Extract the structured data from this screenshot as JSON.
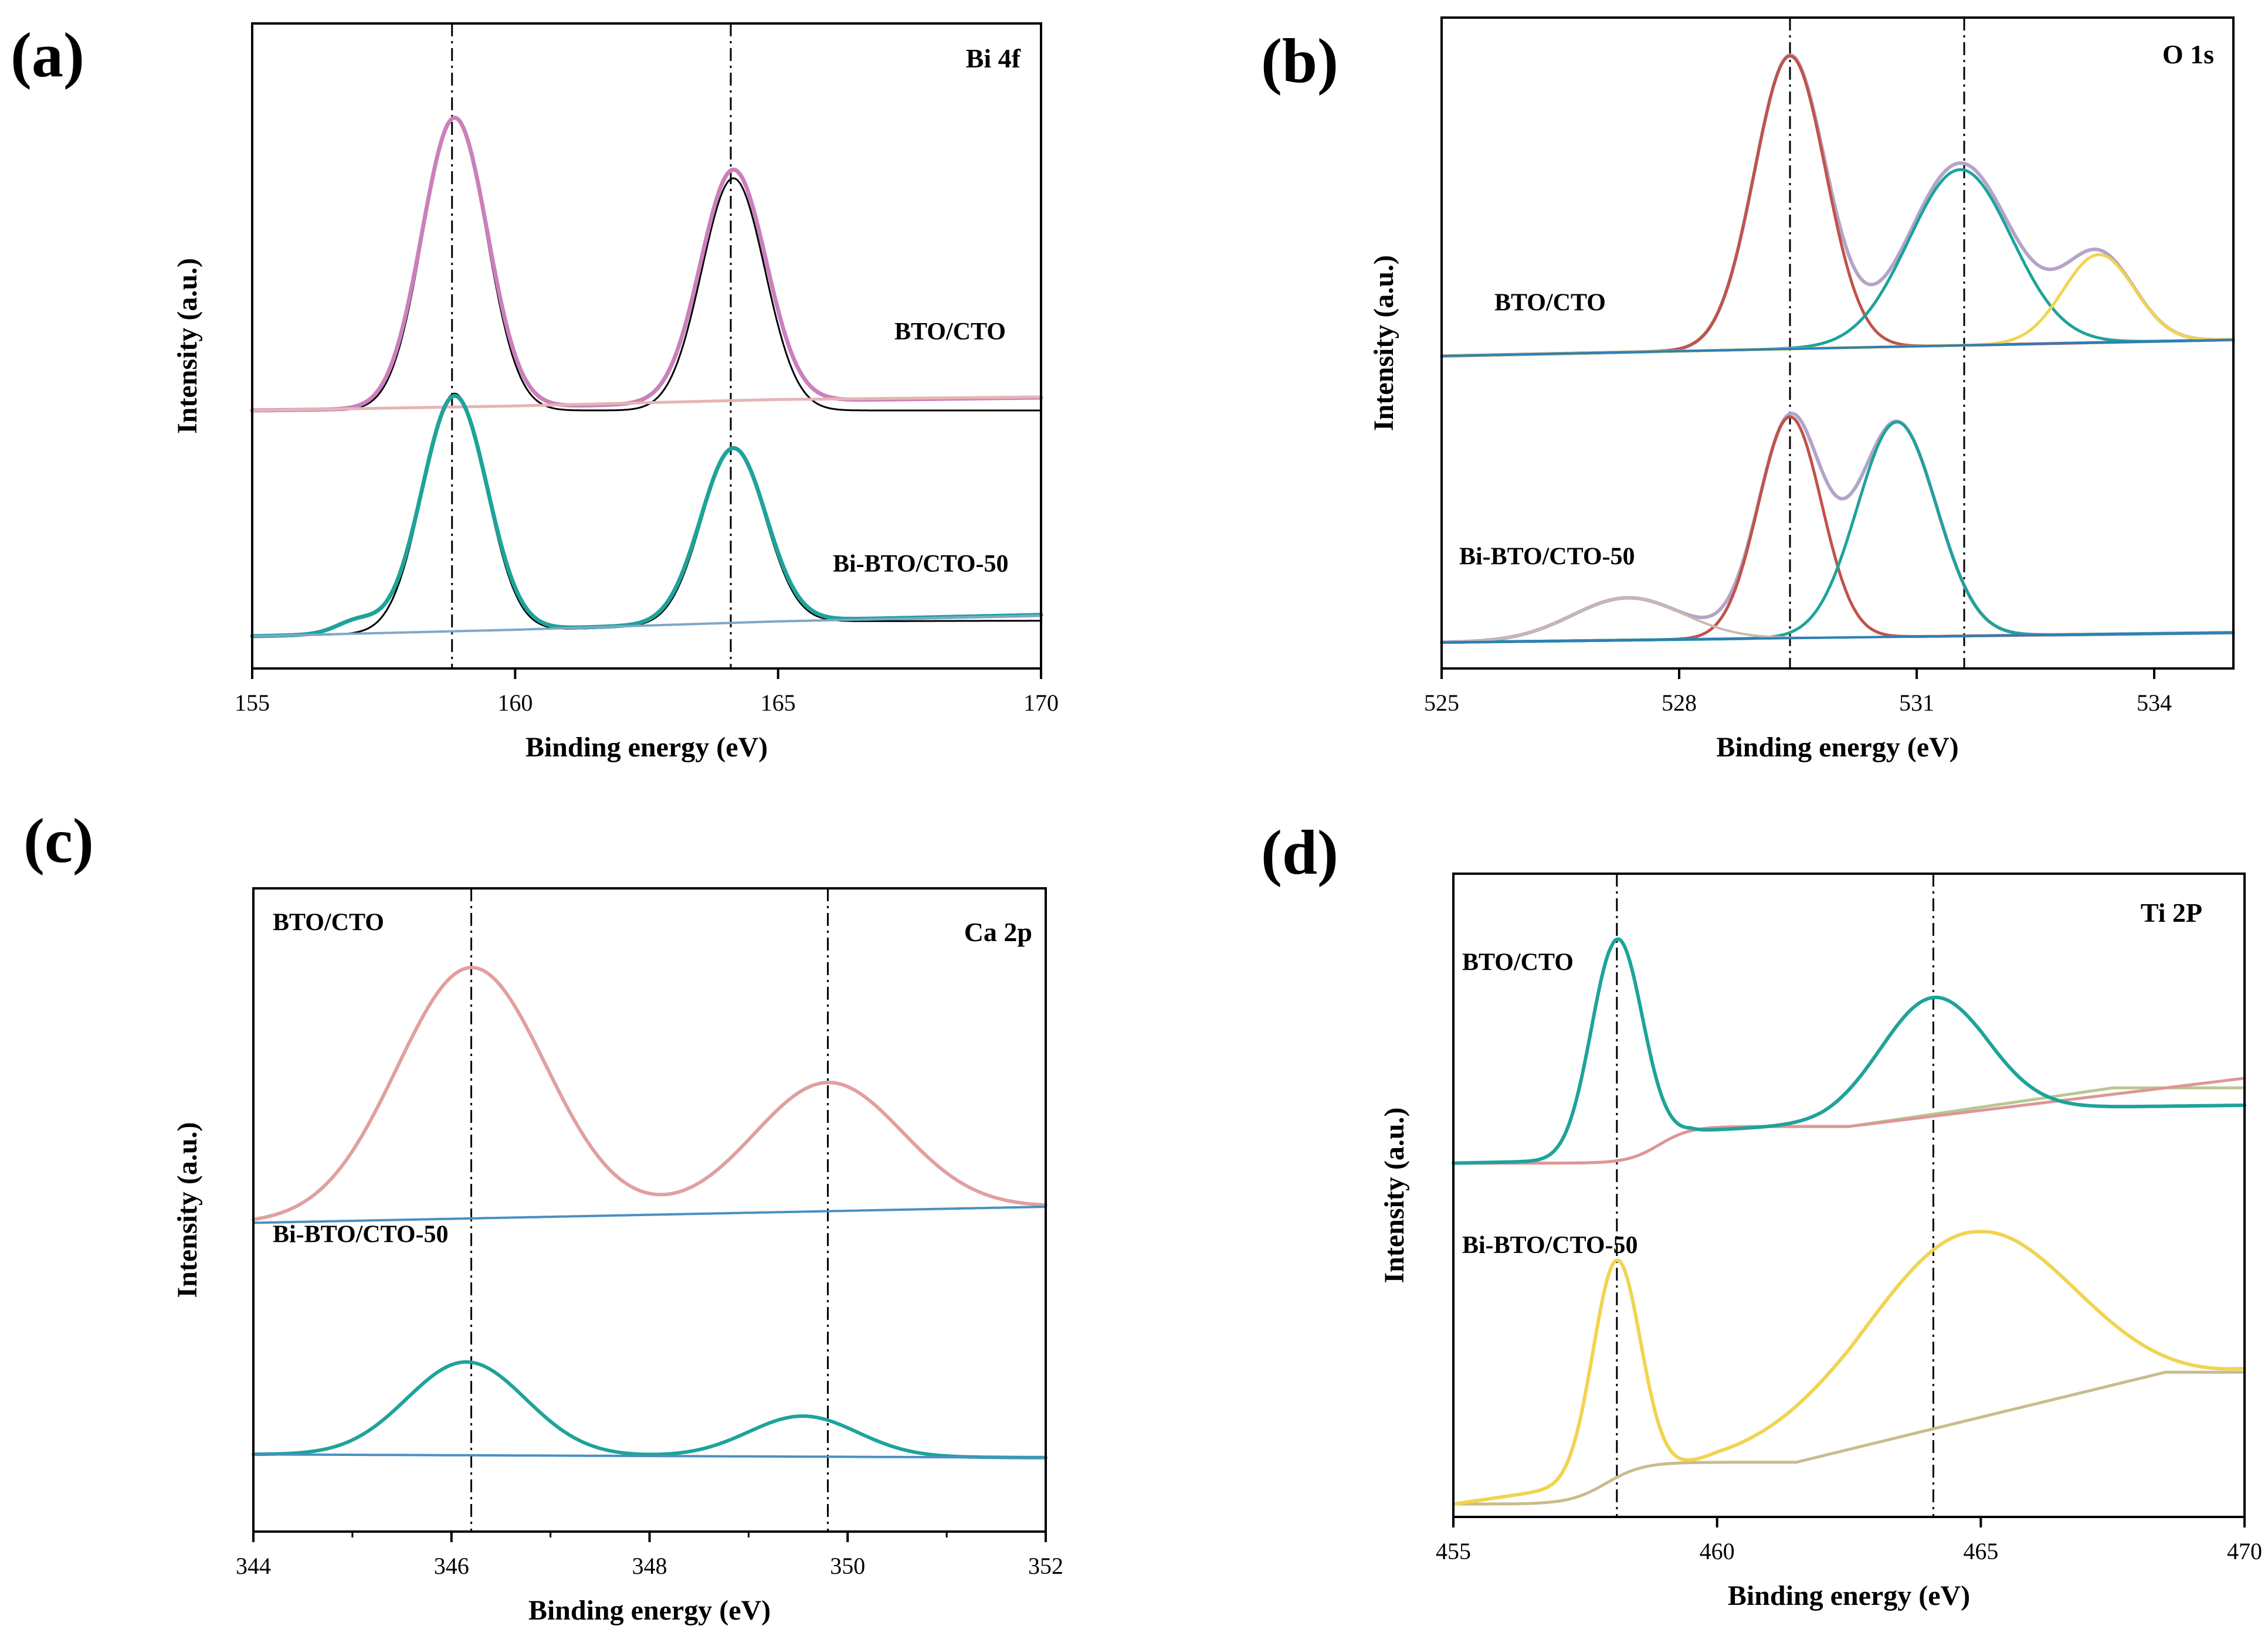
{
  "figure": {
    "panels": [
      "(a)",
      "(b)",
      "(c)",
      "(d)"
    ]
  },
  "chart_data": [
    {
      "id": "a",
      "type": "line",
      "panel_label": "(a)",
      "title": "Bi 4f",
      "xlabel": "Binding energy (eV)",
      "ylabel": "Intensity (a.u.)",
      "xlim": [
        155,
        170
      ],
      "ylim": [
        0,
        100
      ],
      "xticks": [
        155,
        160,
        165,
        170
      ],
      "xtick_labels": [
        "155",
        "160",
        "165",
        "170"
      ],
      "reference_lines": [
        158.8,
        164.1
      ],
      "sample_labels": [
        {
          "text": "BTO/CTO",
          "x": 163.8,
          "y": 51
        },
        {
          "text": "Bi-BTO/CTO-50",
          "x": 163.3,
          "y": 15
        }
      ],
      "series": [
        {
          "name": "BTO/CTO raw",
          "color": "#000000",
          "width": 3,
          "offset": 40,
          "baseline": [
            [
              155,
              0
            ],
            [
              170,
              0
            ]
          ],
          "peaks": [
            {
              "c": 158.85,
              "h": 45.5,
              "w": 0.6
            },
            {
              "c": 164.15,
              "h": 36,
              "w": 0.6
            }
          ]
        },
        {
          "name": "BTO/CTO fit",
          "color": "#cc7fbd",
          "width": 7,
          "offset": 40,
          "baseline": [
            [
              155,
              0
            ],
            [
              160,
              0.5
            ],
            [
              165,
              1.5
            ],
            [
              170,
              2
            ]
          ],
          "peaks": [
            {
              "c": 158.85,
              "h": 45,
              "w": 0.62
            },
            {
              "c": 164.15,
              "h": 36,
              "w": 0.62
            }
          ]
        },
        {
          "name": "BTO/CTO background",
          "color": "#e5b5b5",
          "width": 5,
          "offset": 40,
          "baseline": [
            [
              155,
              0
            ],
            [
              160,
              0.7
            ],
            [
              165,
              1.7
            ],
            [
              170,
              2.1
            ]
          ],
          "peaks": []
        },
        {
          "name": "Bi-BTO/CTO-50 raw",
          "color": "#000000",
          "width": 3,
          "offset": 5,
          "baseline": [
            [
              155,
              0
            ],
            [
              160,
              0.8
            ],
            [
              165,
              2.3
            ],
            [
              170,
              2.4
            ]
          ],
          "peaks": [
            {
              "c": 158.85,
              "h": 37,
              "w": 0.6
            },
            {
              "c": 164.15,
              "h": 27,
              "w": 0.6
            }
          ]
        },
        {
          "name": "Bi-BTO/CTO-50 fit",
          "color": "#1ea39a",
          "width": 7,
          "offset": 5,
          "baseline": [
            [
              155,
              0
            ],
            [
              160,
              1
            ],
            [
              165,
              2.4
            ],
            [
              170,
              3.3
            ]
          ],
          "peaks": [
            {
              "c": 158.85,
              "h": 36.5,
              "w": 0.62
            },
            {
              "c": 164.15,
              "h": 27,
              "w": 0.62
            },
            {
              "c": 157,
              "h": 2,
              "w": 0.4
            }
          ]
        },
        {
          "name": "Bi-BTO/CTO-50 background",
          "color": "#7fa7c9",
          "width": 4,
          "offset": 5,
          "baseline": [
            [
              155,
              0
            ],
            [
              160,
              1
            ],
            [
              165,
              2.3
            ],
            [
              170,
              3.2
            ]
          ],
          "peaks": []
        }
      ]
    },
    {
      "id": "b",
      "type": "line",
      "panel_label": "(b)",
      "title": "O 1s",
      "xlabel": "Binding energy (eV)",
      "ylabel": "Intensity (a.u.)",
      "xlim": [
        525,
        535
      ],
      "ylim": [
        0,
        100
      ],
      "xticks": [
        525,
        528,
        531,
        534
      ],
      "xtick_labels": [
        "525",
        "528",
        "531",
        "534"
      ],
      "reference_lines": [
        529.4,
        531.6
      ],
      "sample_labels": [
        {
          "text": "BTO/CTO",
          "x": 526.4,
          "y": 55
        },
        {
          "text": "Bi-BTO/CTO-50",
          "x": 526.4,
          "y": 16
        }
      ],
      "series": [
        {
          "name": "BTO/CTO raw",
          "color": "#b3a4c8",
          "width": 6,
          "offset": 48,
          "baseline": [
            [
              525,
              0
            ],
            [
              535,
              2.5
            ]
          ],
          "peaks": [
            {
              "c": 529.4,
              "h": 45,
              "w": 0.45
            },
            {
              "c": 531.55,
              "h": 28,
              "w": 0.65
            },
            {
              "c": 533.3,
              "h": 13.5,
              "w": 0.45
            }
          ]
        },
        {
          "name": "BTO/CTO component 1",
          "color": "#c0534a",
          "width": 5,
          "offset": 48,
          "baseline": [
            [
              525,
              0
            ],
            [
              535,
              2.5
            ]
          ],
          "peaks": [
            {
              "c": 529.4,
              "h": 45,
              "w": 0.45
            }
          ]
        },
        {
          "name": "BTO/CTO component 2",
          "color": "#1ea39a",
          "width": 5,
          "offset": 48,
          "baseline": [
            [
              525,
              0
            ],
            [
              535,
              2.5
            ]
          ],
          "peaks": [
            {
              "c": 531.55,
              "h": 27,
              "w": 0.65
            }
          ]
        },
        {
          "name": "BTO/CTO component 3",
          "color": "#f0d452",
          "width": 5,
          "offset": 48,
          "baseline": [
            [
              525,
              0
            ],
            [
              535,
              2.5
            ]
          ],
          "peaks": [
            {
              "c": 533.3,
              "h": 13.5,
              "w": 0.45
            }
          ]
        },
        {
          "name": "BTO/CTO background",
          "color": "#2b7fb8",
          "width": 4,
          "offset": 48,
          "baseline": [
            [
              525,
              0
            ],
            [
              535,
              2.5
            ]
          ],
          "peaks": []
        },
        {
          "name": "Bi-BTO/CTO-50 raw",
          "color": "#b3a4c8",
          "width": 6,
          "offset": 4,
          "baseline": [
            [
              525,
              0
            ],
            [
              535,
              1.5
            ]
          ],
          "peaks": [
            {
              "c": 529.4,
              "h": 33.5,
              "w": 0.4
            },
            {
              "c": 530.75,
              "h": 33,
              "w": 0.5
            },
            {
              "c": 527.35,
              "h": 6.5,
              "w": 0.7
            }
          ]
        },
        {
          "name": "Bi-BTO/CTO-50 component 1",
          "color": "#c0534a",
          "width": 5,
          "offset": 4,
          "baseline": [
            [
              525,
              0
            ],
            [
              535,
              1.5
            ]
          ],
          "peaks": [
            {
              "c": 529.4,
              "h": 34,
              "w": 0.4
            }
          ]
        },
        {
          "name": "Bi-BTO/CTO-50 component 2",
          "color": "#1ea39a",
          "width": 5,
          "offset": 4,
          "baseline": [
            [
              525,
              0
            ],
            [
              535,
              1.5
            ]
          ],
          "peaks": [
            {
              "c": 530.75,
              "h": 33,
              "w": 0.5
            }
          ]
        },
        {
          "name": "Bi-BTO/CTO-50 component 3",
          "color": "#c8b8b0",
          "width": 4,
          "offset": 4,
          "baseline": [
            [
              525,
              0
            ],
            [
              535,
              1.5
            ]
          ],
          "peaks": [
            {
              "c": 527.35,
              "h": 6.5,
              "w": 0.7
            }
          ]
        },
        {
          "name": "Bi-BTO/CTO-50 background",
          "color": "#2b7fb8",
          "width": 4,
          "offset": 4,
          "baseline": [
            [
              525,
              0
            ],
            [
              535,
              1.5
            ]
          ],
          "peaks": []
        }
      ]
    },
    {
      "id": "c",
      "type": "line",
      "panel_label": "(c)",
      "title": "Ca 2p",
      "xlabel": "Binding energy (eV)",
      "ylabel": "Intensity (a.u.)",
      "xlim": [
        344,
        352
      ],
      "ylim": [
        0,
        100
      ],
      "xticks": [
        344,
        346,
        348,
        350,
        352
      ],
      "xtick_labels": [
        "344",
        "346",
        "348",
        "350",
        "352"
      ],
      "minor_xticks": [
        345,
        347,
        349,
        351
      ],
      "reference_lines": [
        346.2,
        349.8
      ],
      "sample_labels": [
        {
          "text": "BTO/CTO",
          "x": 344.2,
          "y": 93.5
        },
        {
          "text": "Bi-BTO/CTO-50",
          "x": 344.2,
          "y": 45
        }
      ],
      "series": [
        {
          "name": "BTO/CTO fit",
          "color": "#e0a0a0",
          "width": 6,
          "offset": 48,
          "baseline": [
            [
              344,
              0
            ],
            [
              352,
              2.5
            ]
          ],
          "peaks": [
            {
              "c": 346.2,
              "h": 39,
              "w": 0.75
            },
            {
              "c": 349.8,
              "h": 20,
              "w": 0.75
            }
          ]
        },
        {
          "name": "BTO/CTO background",
          "color": "#4a90c0",
          "width": 4,
          "offset": 48,
          "baseline": [
            [
              344,
              0
            ],
            [
              352,
              2.5
            ]
          ],
          "peaks": []
        },
        {
          "name": "Bi-BTO/CTO-50 fit",
          "color": "#1ea39a",
          "width": 6,
          "offset": 12,
          "baseline": [
            [
              344,
              0
            ],
            [
              352,
              -0.5
            ]
          ],
          "peaks": [
            {
              "c": 346.15,
              "h": 14.5,
              "w": 0.6
            },
            {
              "c": 349.55,
              "h": 6.3,
              "w": 0.55
            }
          ]
        },
        {
          "name": "Bi-BTO/CTO-50 background",
          "color": "#4a90c0",
          "width": 4,
          "offset": 12,
          "baseline": [
            [
              344,
              0
            ],
            [
              352,
              -0.5
            ]
          ],
          "peaks": []
        }
      ]
    },
    {
      "id": "d",
      "type": "line",
      "panel_label": "(d)",
      "title": "Ti 2P",
      "xlabel": "Binding energy (eV)",
      "ylabel": "Intensity (a.u.)",
      "xlim": [
        455,
        470
      ],
      "ylim": [
        0,
        100
      ],
      "xticks": [
        455,
        460,
        465,
        470
      ],
      "xtick_labels": [
        "455",
        "460",
        "465",
        "470"
      ],
      "reference_lines": [
        458.1,
        464.1
      ],
      "sample_labels": [
        {
          "text": "BTO/CTO",
          "x": 455.2,
          "y": 85
        },
        {
          "text": "Bi-BTO/CTO-50",
          "x": 455.2,
          "y": 41
        }
      ],
      "series": [
        {
          "name": "BTO/CTO background 1",
          "color": "#b6c890",
          "width": 5,
          "offset": 55,
          "sigmoid": {
            "c": 458.9,
            "k": 0.3,
            "h": 5.7
          },
          "ramp": {
            "start": 462.5,
            "rate": 1.2,
            "cap": 6
          },
          "peaks": []
        },
        {
          "name": "BTO/CTO background 2",
          "color": "#e09595",
          "width": 5,
          "offset": 55,
          "sigmoid": {
            "c": 458.9,
            "k": 0.3,
            "h": 5.7
          },
          "ramp": {
            "start": 462.5,
            "rate": 1.0,
            "cap": 7.5
          },
          "peaks": []
        },
        {
          "name": "BTO/CTO fit",
          "color": "#1ea39a",
          "width": 6,
          "offset": 55,
          "baseline": [
            [
              455,
              0
            ],
            [
              458,
              0.5
            ],
            [
              459.5,
              5
            ],
            [
              462,
              6
            ],
            [
              465,
              8.5
            ],
            [
              470,
              9
            ]
          ],
          "peaks": [
            {
              "c": 458.1,
              "h": 34,
              "w": 0.48
            },
            {
              "c": 464.1,
              "h": 18,
              "w": 1.0
            }
          ]
        },
        {
          "name": "Bi-BTO/CTO-50 background",
          "color": "#c8bc8c",
          "width": 5,
          "offset": 2,
          "sigmoid": {
            "c": 457.9,
            "k": 0.35,
            "h": 6.5
          },
          "ramp": {
            "start": 461.5,
            "rate": 2.0,
            "cap": 14
          },
          "peaks": []
        },
        {
          "name": "Bi-BTO/CTO-50 fit",
          "color": "#f0d452",
          "width": 6,
          "offset": 2,
          "baseline": [
            [
              455,
              0
            ],
            [
              457.5,
              3
            ],
            [
              460,
              6.3
            ],
            [
              462.5,
              7.5
            ],
            [
              465,
              10.5
            ],
            [
              470,
              20
            ]
          ],
          "peaks": [
            {
              "c": 458.1,
              "h": 34,
              "w": 0.45
            },
            {
              "c": 464.8,
              "h": 32,
              "w": 2.0
            }
          ]
        }
      ]
    }
  ]
}
